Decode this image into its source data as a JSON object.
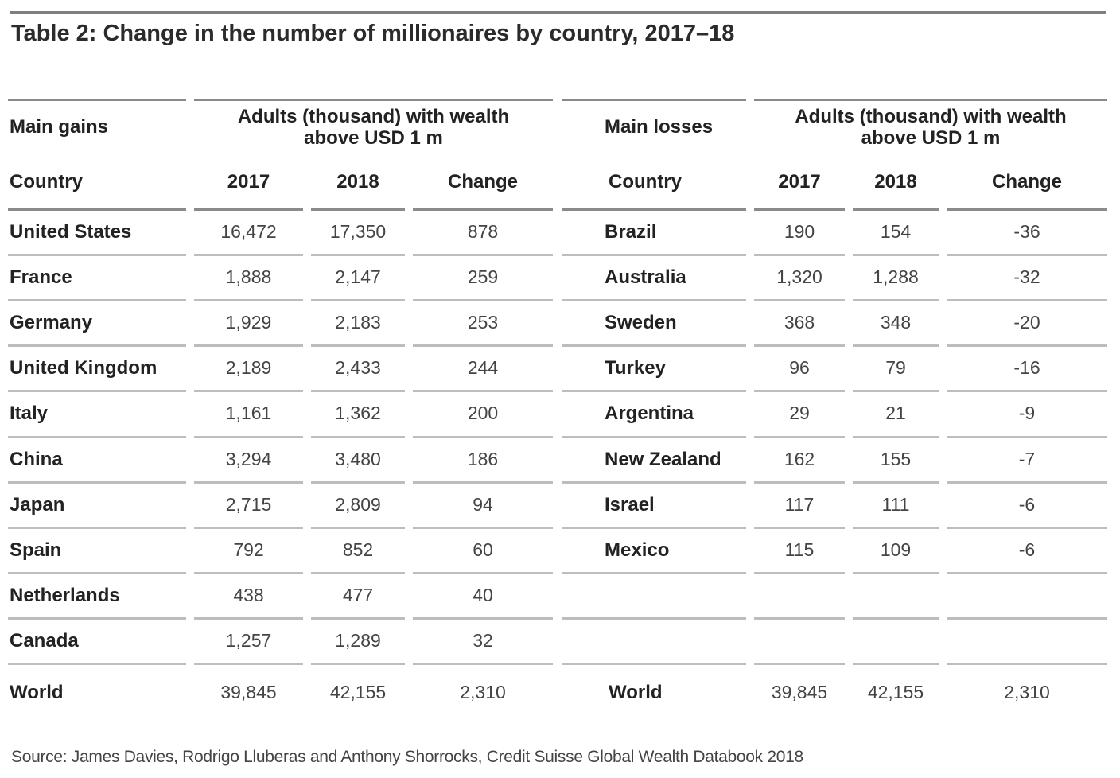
{
  "chart_data": {
    "type": "table",
    "title": "Table 2: Change in the number of millionaires by country, 2017–18",
    "group_header": "Adults (thousand) with wealth above USD 1 m",
    "group_header_line1": "Adults (thousand) with wealth",
    "group_header_line2": "above USD 1 m",
    "gains": {
      "label": "Main gains",
      "columns": [
        "Country",
        "2017",
        "2018",
        "Change"
      ],
      "rows": [
        [
          "United States",
          "16,472",
          "17,350",
          "878"
        ],
        [
          "France",
          "1,888",
          "2,147",
          "259"
        ],
        [
          "Germany",
          "1,929",
          "2,183",
          "253"
        ],
        [
          "United Kingdom",
          "2,189",
          "2,433",
          "244"
        ],
        [
          "Italy",
          "1,161",
          "1,362",
          "200"
        ],
        [
          "China",
          "3,294",
          "3,480",
          "186"
        ],
        [
          "Japan",
          "2,715",
          "2,809",
          "94"
        ],
        [
          "Spain",
          "792",
          "852",
          "60"
        ],
        [
          "Netherlands",
          "438",
          "477",
          "40"
        ],
        [
          "Canada",
          "1,257",
          "1,289",
          "32"
        ]
      ],
      "total": [
        "World",
        "39,845",
        "42,155",
        "2,310"
      ]
    },
    "losses": {
      "label": "Main losses",
      "columns": [
        "Country",
        "2017",
        "2018",
        "Change"
      ],
      "rows": [
        [
          "Brazil",
          "190",
          "154",
          "-36"
        ],
        [
          "Australia",
          "1,320",
          "1,288",
          "-32"
        ],
        [
          "Sweden",
          "368",
          "348",
          "-20"
        ],
        [
          "Turkey",
          "96",
          "79",
          "-16"
        ],
        [
          "Argentina",
          "29",
          "21",
          "-9"
        ],
        [
          "New Zealand",
          "162",
          "155",
          "-7"
        ],
        [
          "Israel",
          "117",
          "111",
          "-6"
        ],
        [
          "Mexico",
          "115",
          "109",
          "-6"
        ]
      ],
      "total": [
        "World",
        "39,845",
        "42,155",
        "2,310"
      ]
    },
    "source": "Source: James Davies, Rodrigo Lluberas and Anthony Shorrocks, Credit Suisse Global Wealth Databook 2018"
  },
  "colors": {
    "text": "#2b2b2b",
    "rule": "#8a8a8a",
    "row_rule": "#bdbdbd"
  }
}
